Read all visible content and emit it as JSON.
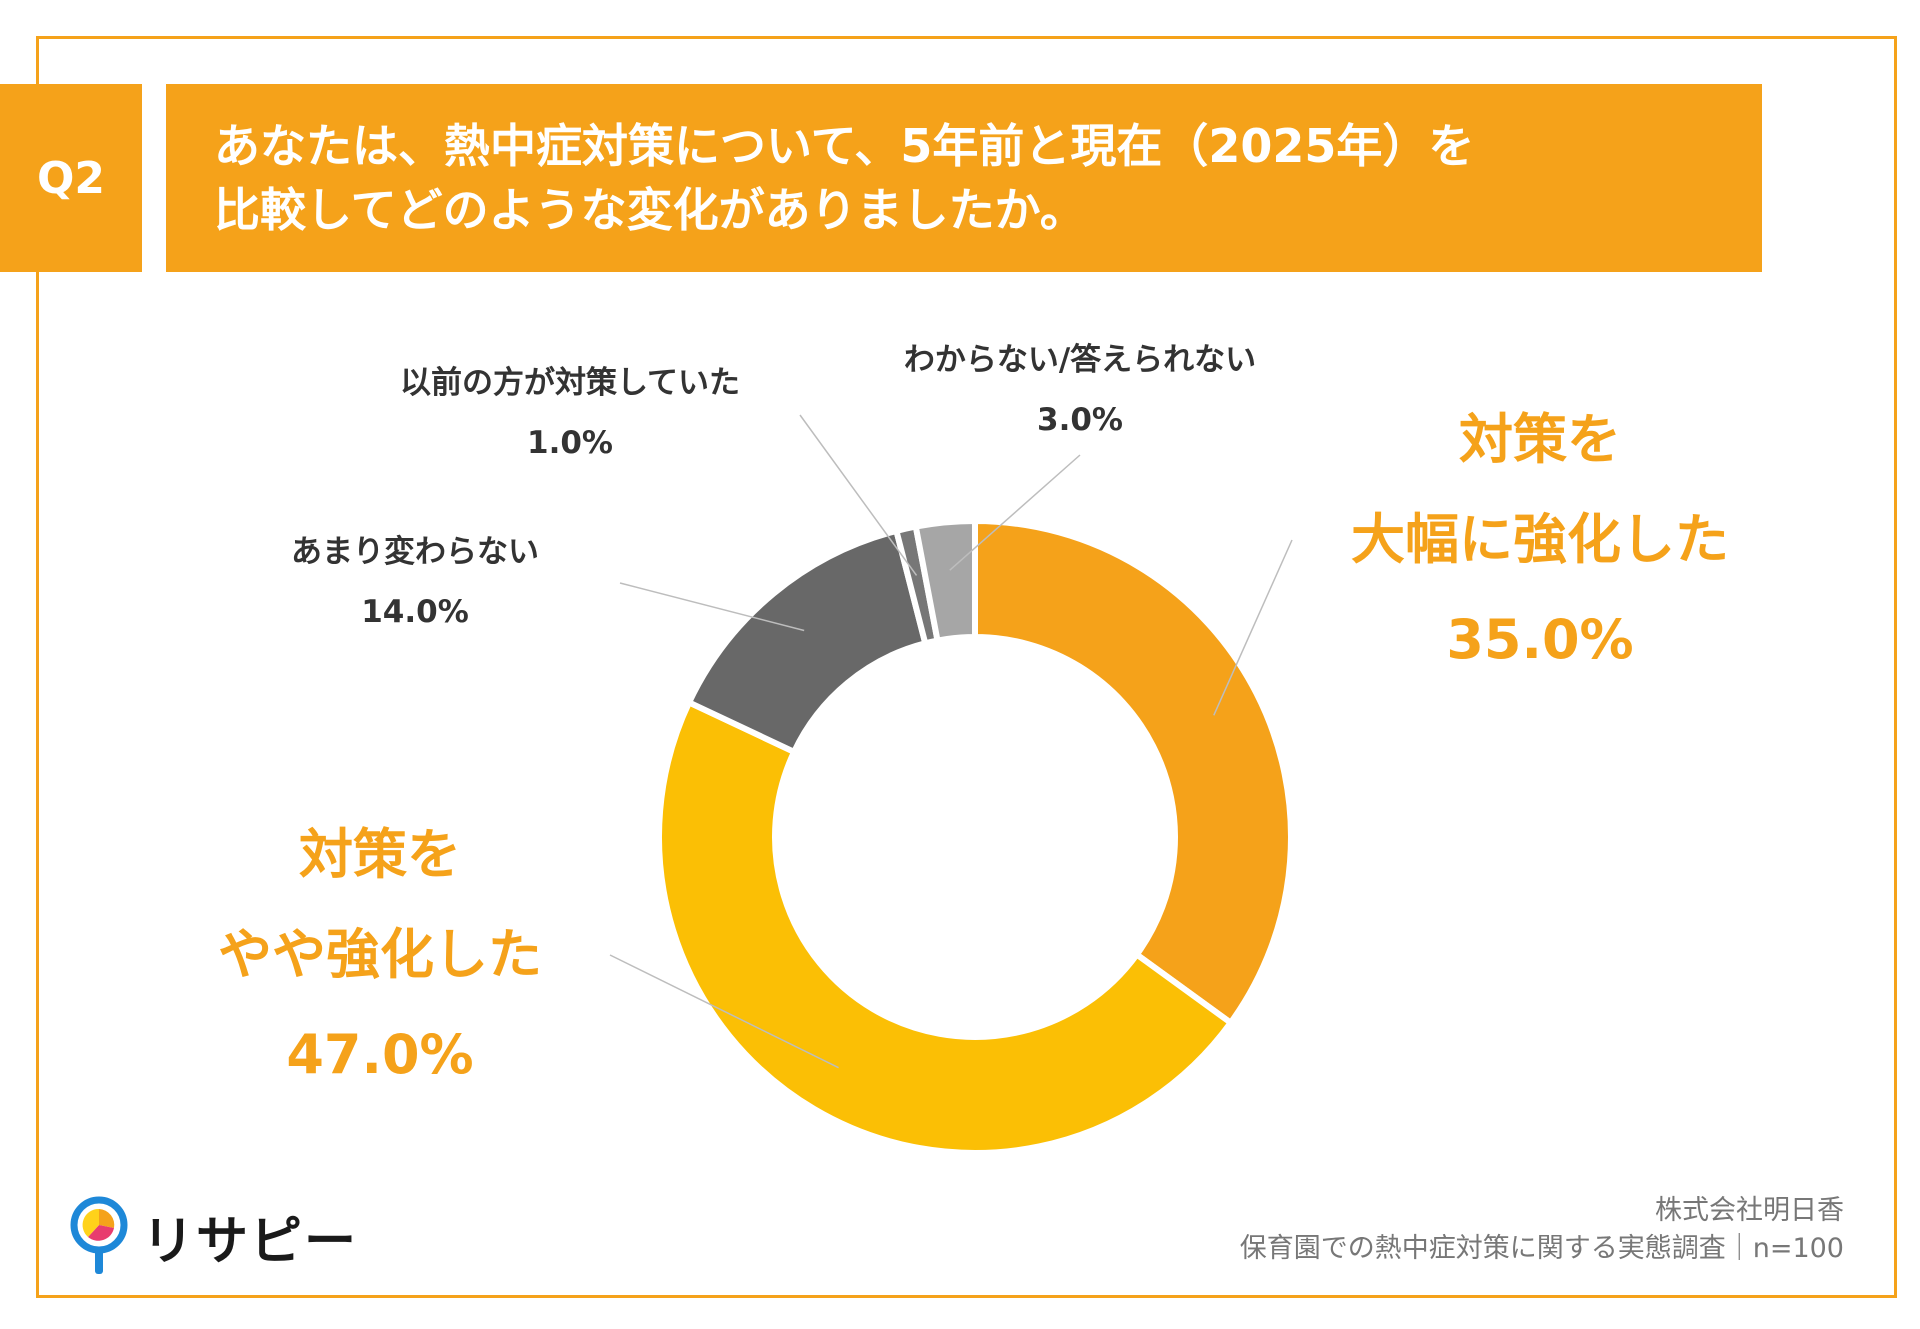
{
  "question": {
    "badge": "Q2",
    "line1": "あなたは、熱中症対策について、5年前と現在（2025年）を",
    "line2": "比較してどのような変化がありましたか。"
  },
  "chart_data": {
    "type": "pie",
    "style": "donut",
    "slices": [
      {
        "label_lines": [
          "対策を",
          "大幅に強化した"
        ],
        "value": 35.0,
        "value_text": "35.0%",
        "color": "#f5a21a"
      },
      {
        "label_lines": [
          "対策を",
          "やや強化した"
        ],
        "value": 47.0,
        "value_text": "47.0%",
        "color": "#fbbf05"
      },
      {
        "label_lines": [
          "あまり変わらない"
        ],
        "value": 14.0,
        "value_text": "14.0%",
        "color": "#686868"
      },
      {
        "label_lines": [
          "以前の方が対策していた"
        ],
        "value": 1.0,
        "value_text": "1.0%",
        "color": "#777777"
      },
      {
        "label_lines": [
          "わからない/答えられない"
        ],
        "value": 3.0,
        "value_text": "3.0%",
        "color": "#a6a6a6"
      }
    ]
  },
  "credit": {
    "company": "株式会社明日香",
    "survey": "保育園での熱中症対策に関する実態調査｜n=100"
  },
  "logo": {
    "text": "リサピー"
  },
  "colors": {
    "accent": "#f5a21a",
    "text_dark": "#333333"
  }
}
